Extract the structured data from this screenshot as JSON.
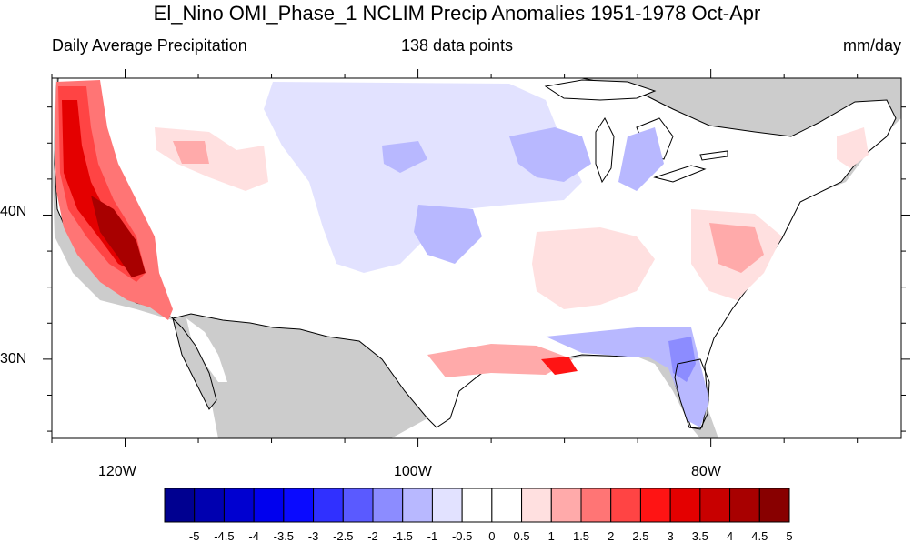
{
  "title": "El_Nino OMI_Phase_1 NCLIM Precip Anomalies 1951-1978 Oct-Apr",
  "subtitle_left": "Daily Average Precipitation",
  "subtitle_center": "138 data points",
  "subtitle_right": "mm/day",
  "map": {
    "region": "Contiguous United States",
    "lon_range": [
      -125,
      -67
    ],
    "lat_range": [
      24.5,
      49.5
    ],
    "lon_ticks": [
      {
        "value": -120,
        "label": "120W"
      },
      {
        "value": -100,
        "label": "100W"
      },
      {
        "value": -80,
        "label": "80W"
      }
    ],
    "lat_ticks": [
      {
        "value": 40,
        "label": "40N"
      },
      {
        "value": 30,
        "label": "30N"
      }
    ],
    "land_outside_color": "#cccccc",
    "water_color": "#ffffff"
  },
  "colorbar": {
    "labels": [
      "-5",
      "-4.5",
      "-4",
      "-3.5",
      "-3",
      "-2.5",
      "-2",
      "-1.5",
      "-1",
      "-0.5",
      "0",
      "0.5",
      "1",
      "1.5",
      "2",
      "2.5",
      "3",
      "3.5",
      "4",
      "4.5",
      "5"
    ],
    "colors": [
      "#000090",
      "#0000b0",
      "#0000d0",
      "#0000ee",
      "#0a0aff",
      "#3030ff",
      "#5a5aff",
      "#8c8cff",
      "#b8b8ff",
      "#e2e2ff",
      "#ffffff",
      "#ffffff",
      "#ffe0e0",
      "#ffaaaa",
      "#ff7575",
      "#ff4444",
      "#ff1414",
      "#e40000",
      "#c80000",
      "#a80000",
      "#880000"
    ]
  }
}
